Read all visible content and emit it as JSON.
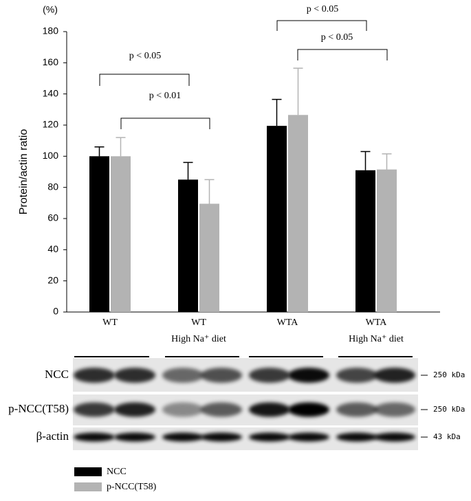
{
  "chart_data": {
    "type": "bar",
    "y_label": "Protein/actin ratio",
    "y_unit": "(%)",
    "categories": [
      [
        "WT"
      ],
      [
        "WT",
        "High Na⁺ diet"
      ],
      [
        "WTA"
      ],
      [
        "WTA",
        "High Na⁺ diet"
      ]
    ],
    "series": [
      {
        "name": "NCC",
        "color": "#000000",
        "error_color": "#000000",
        "values": [
          100,
          85,
          119.5,
          91
        ],
        "errors": [
          6,
          11,
          17,
          12
        ]
      },
      {
        "name": "p-NCC(T58)",
        "color": "#b3b3b3",
        "error_color": "#b3b3b3",
        "values": [
          100,
          69.5,
          126.5,
          91.5
        ],
        "errors": [
          12,
          15.5,
          30,
          10
        ]
      }
    ],
    "ylim": [
      0,
      180
    ],
    "yticks": [
      0,
      20,
      40,
      60,
      80,
      100,
      120,
      140,
      160,
      180
    ],
    "annotations": [
      "p < 0.05",
      "p < 0.01",
      "p < 0.05",
      "p < 0.05"
    ]
  },
  "blot": {
    "rows": [
      {
        "label": "NCC",
        "size": "250 kDa"
      },
      {
        "label": "p-NCC(T58)",
        "size": "250 kDa"
      },
      {
        "label": "β-actin",
        "size": "43 kDa"
      }
    ]
  }
}
